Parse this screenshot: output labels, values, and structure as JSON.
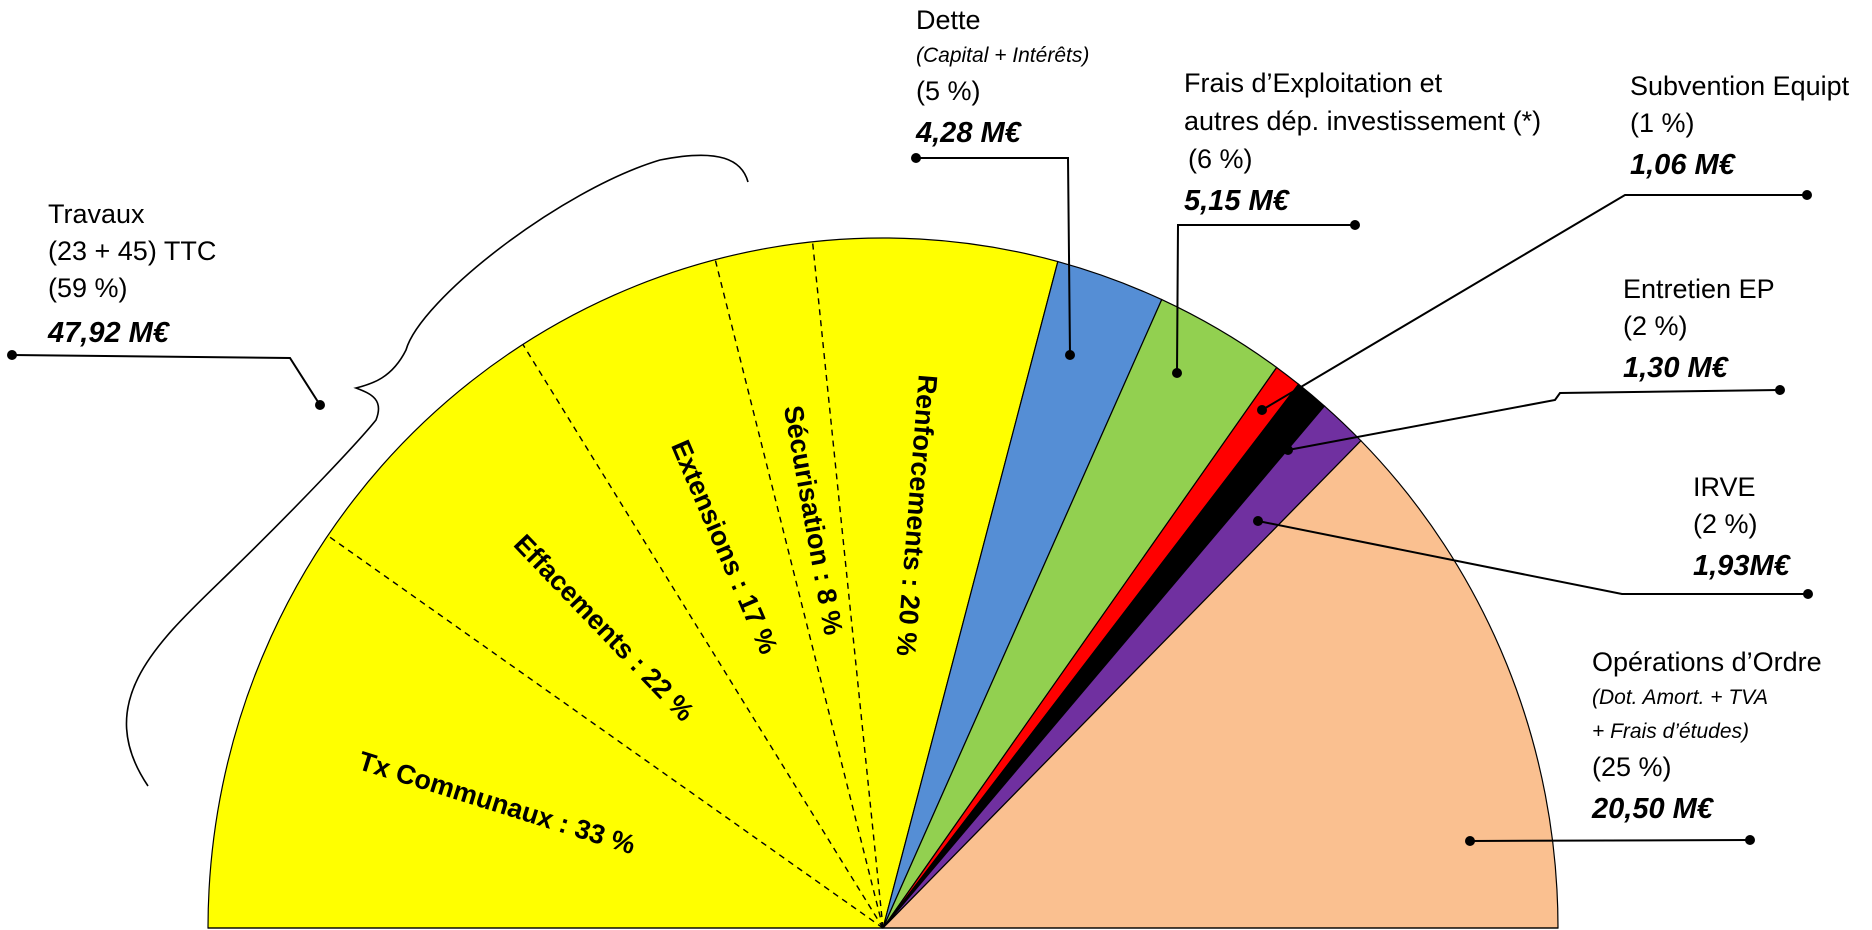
{
  "chart_data": {
    "type": "pie",
    "layout": "half-pie",
    "slices": [
      {
        "key": "travaux",
        "value": 47.92,
        "color": "#ffff00"
      },
      {
        "key": "dette",
        "value": 4.28,
        "color": "#558ed5"
      },
      {
        "key": "frais",
        "value": 5.15,
        "color": "#92d050"
      },
      {
        "key": "subvention",
        "value": 1.06,
        "color": "#ff0000"
      },
      {
        "key": "entretien",
        "value": 1.3,
        "color": "#000000"
      },
      {
        "key": "irve",
        "value": 1.93,
        "color": "#7030a0"
      },
      {
        "key": "ordre",
        "value": 20.5,
        "color": "#fac090"
      }
    ],
    "sub_slices": [
      {
        "label": "Tx Communaux : 33 %",
        "share": 33
      },
      {
        "label": "Effacements : 22 %",
        "share": 22
      },
      {
        "label": "Extensions : 17 %",
        "share": 17
      },
      {
        "label": "Sécurisation : 8 %",
        "share": 8
      },
      {
        "label": "Renforcements : 20 %",
        "share": 20
      }
    ],
    "labels": {
      "travaux": {
        "lines": [
          "Travaux",
          "(23 + 45) TTC",
          "(59 %)"
        ],
        "value": "47,92 M€"
      },
      "dette": {
        "lines": [
          "Dette",
          "(5 %)"
        ],
        "note": "(Capital + Intérêts)",
        "value": "4,28 M€"
      },
      "frais": {
        "lines": [
          "Frais d’Exploitation et",
          "autres dép. investissement (*)",
          "(6 %)"
        ],
        "value": "5,15 M€"
      },
      "subvention": {
        "lines": [
          "Subvention Equipt",
          "(1 %)"
        ],
        "value": "1,06 M€"
      },
      "entretien": {
        "lines": [
          "Entretien EP",
          "(2 %)"
        ],
        "value": "1,30 M€"
      },
      "irve": {
        "lines": [
          "IRVE",
          "(2 %)"
        ],
        "value": "1,93M€"
      },
      "ordre": {
        "lines": [
          "Opérations d’Ordre",
          "(25 %)"
        ],
        "notes": [
          "(Dot. Amort. + TVA",
          "+ Frais d’études)"
        ],
        "value": "20,50 M€"
      }
    }
  }
}
